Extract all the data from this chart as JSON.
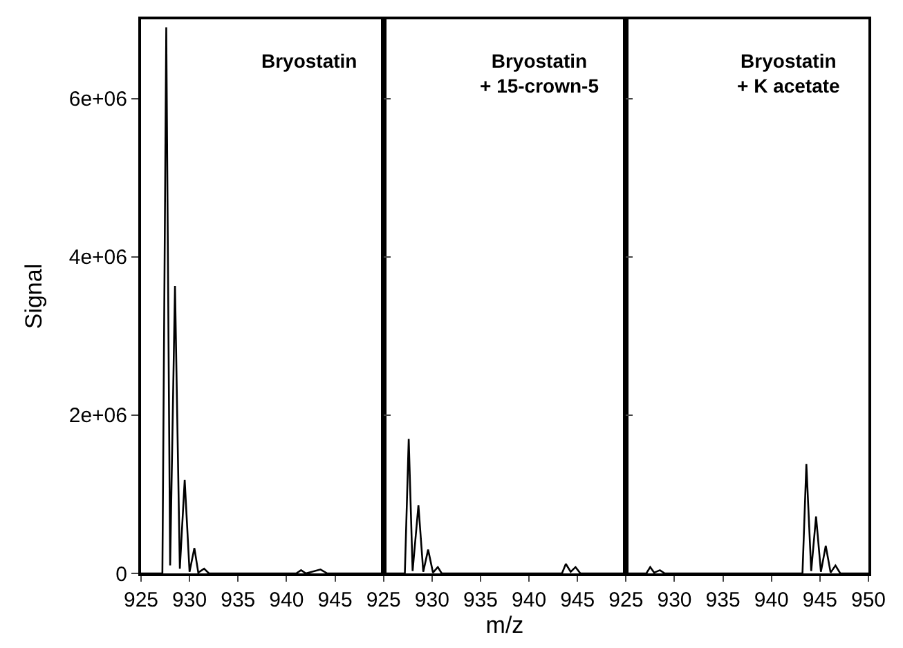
{
  "chart_data": [
    {
      "type": "line",
      "ylabel": "Signal",
      "annotations": [
        "Bryostatin"
      ],
      "xlim": [
        925,
        950
      ],
      "xticks": [
        925,
        930,
        935,
        940,
        945
      ],
      "ylim": [
        0,
        7000000
      ],
      "yticks": [
        0,
        {
          "value": 2000000,
          "label": "2e+06"
        },
        {
          "value": 4000000,
          "label": "4e+06"
        },
        {
          "value": 6000000,
          "label": "6e+06"
        }
      ],
      "tick_labels": "xy",
      "series": [
        {
          "color": "#000000",
          "x": [
            925,
            927.2,
            927.6,
            928.0,
            928.5,
            929.0,
            929.5,
            930.0,
            930.5,
            930.9,
            931.5,
            932.0,
            941.0,
            941.5,
            942.0,
            943.5,
            944.2,
            950
          ],
          "values": [
            0,
            0,
            6900000,
            100000,
            3630000,
            60000,
            1180000,
            20000,
            320000,
            10000,
            60000,
            0,
            0,
            40000,
            0,
            50000,
            0,
            0
          ]
        }
      ]
    },
    {
      "type": "line",
      "xlabel": "m/z",
      "annotations": [
        "Bryostatin\n+ 15-crown-5"
      ],
      "xlim": [
        925,
        950
      ],
      "xticks": [
        925,
        930,
        935,
        940,
        945
      ],
      "ylim": [
        0,
        7000000
      ],
      "tick_labels": "x",
      "series": [
        {
          "color": "#000000",
          "x": [
            925,
            927.2,
            927.6,
            928.0,
            928.6,
            929.1,
            929.6,
            930.1,
            930.6,
            931.0,
            943.4,
            943.8,
            944.3,
            944.8,
            945.3,
            950
          ],
          "values": [
            0,
            0,
            1700000,
            30000,
            860000,
            20000,
            300000,
            10000,
            80000,
            0,
            0,
            120000,
            20000,
            80000,
            0,
            0
          ]
        }
      ]
    },
    {
      "type": "line",
      "annotations": [
        "Bryostatin\n+ K acetate"
      ],
      "xlim": [
        925,
        950
      ],
      "xticks": [
        925,
        930,
        935,
        940,
        945,
        950
      ],
      "ylim": [
        0,
        7000000
      ],
      "tick_labels": "x",
      "series": [
        {
          "color": "#000000",
          "x": [
            925,
            927.1,
            927.5,
            927.9,
            928.5,
            929.0,
            943.2,
            943.6,
            944.1,
            944.6,
            945.1,
            945.6,
            946.1,
            946.6,
            947.1,
            950
          ],
          "values": [
            0,
            0,
            80000,
            10000,
            40000,
            0,
            0,
            1380000,
            30000,
            720000,
            20000,
            350000,
            10000,
            100000,
            0,
            0
          ]
        }
      ]
    }
  ]
}
